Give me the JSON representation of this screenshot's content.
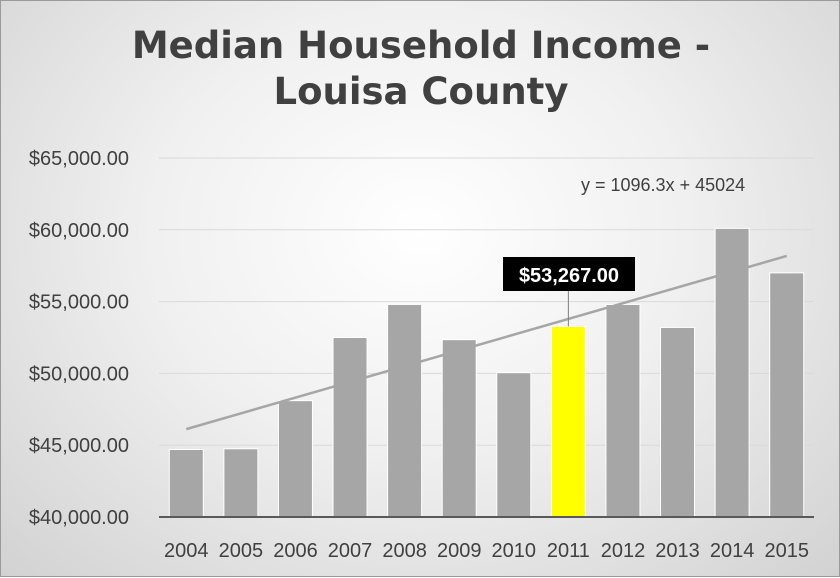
{
  "chart_data": {
    "type": "bar",
    "title": "Median Household Income -\nLouisa County",
    "categories": [
      "2004",
      "2005",
      "2006",
      "2007",
      "2008",
      "2009",
      "2010",
      "2011",
      "2012",
      "2013",
      "2014",
      "2015"
    ],
    "values": [
      44700,
      44750,
      48100,
      52500,
      54800,
      52350,
      50050,
      53267,
      54800,
      53200,
      60100,
      57000
    ],
    "highlight_index": 7,
    "ylim": [
      40000,
      65000
    ],
    "yticks": [
      40000,
      45000,
      50000,
      55000,
      60000,
      65000
    ],
    "ytick_labels": [
      "$40,000.00",
      "$45,000.00",
      "$50,000.00",
      "$55,000.00",
      "$60,000.00",
      "$65,000.00"
    ],
    "grid": true,
    "trendline": {
      "slope": 1096.3,
      "intercept": 45024,
      "equation": "y = 1096.3x + 45024"
    },
    "data_label": "$53,267.00",
    "colors": {
      "bar": "#a6a6a6",
      "highlight": "#ffff00",
      "trend": "#a6a6a6",
      "label_bg": "#000000",
      "axis": "#595959"
    }
  }
}
